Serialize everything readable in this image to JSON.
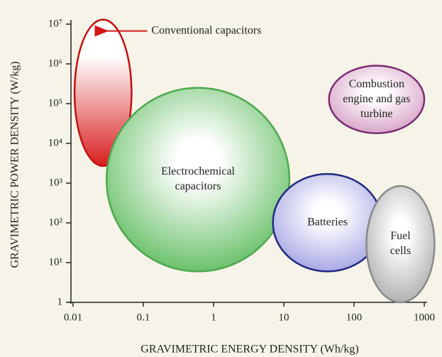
{
  "chart_data": {
    "type": "region",
    "xlabel": "GRAVIMETRIC ENERGY DENSITY (Wh/kg)",
    "ylabel": "GRAVIMETRIC POWER DENSITY (W/kg)",
    "xscale": "log",
    "yscale": "log",
    "xlim": [
      0.01,
      1000
    ],
    "xticks": [
      0.01,
      0.1,
      1,
      10,
      100,
      1000
    ],
    "ylim": [
      1,
      10000000
    ],
    "yticks": [
      1,
      {
        "value": 10,
        "label": "10¹"
      },
      {
        "value": 100,
        "label": "10²"
      },
      {
        "value": 1000,
        "label": "10³"
      },
      {
        "value": 10000,
        "label": "10⁴"
      },
      {
        "value": 100000,
        "label": "10⁵"
      },
      {
        "value": 1000000,
        "label": "10⁶"
      },
      {
        "value": 10000000,
        "label": "10⁷"
      }
    ],
    "series": [
      {
        "color": "#d81e1e",
        "edge": "#c41010",
        "x": [
          0.0105,
          0.068
        ],
        "y": [
          2700,
          13000000
        ]
      },
      {
        "label": [
          "Electrochemical",
          "capacitors"
        ],
        "color": "#6cc26c",
        "edge": "#4ea84e",
        "x": [
          0.03,
          12
        ],
        "y": [
          6,
          250000
        ]
      },
      {
        "label": [
          "Batteries"
        ],
        "color": "#a9a9e6",
        "edge": "#1f2a80",
        "x": [
          7,
          250
        ],
        "y": [
          6,
          1700
        ]
      },
      {
        "label": [
          "Fuel",
          "cells"
        ],
        "color": "#b4b4b4",
        "edge": "#8a8a8a",
        "x": [
          150,
          1400
        ],
        "y": [
          1,
          850
        ]
      },
      {
        "label": [
          "Combustion",
          "engine and gas",
          "turbine"
        ],
        "color": "#d9a6c9",
        "edge": "#7a2d72",
        "x": [
          44,
          1000
        ],
        "y": [
          18000,
          900000
        ]
      }
    ],
    "annotations": [
      {
        "text": "Conventional capacitors"
      }
    ]
  }
}
